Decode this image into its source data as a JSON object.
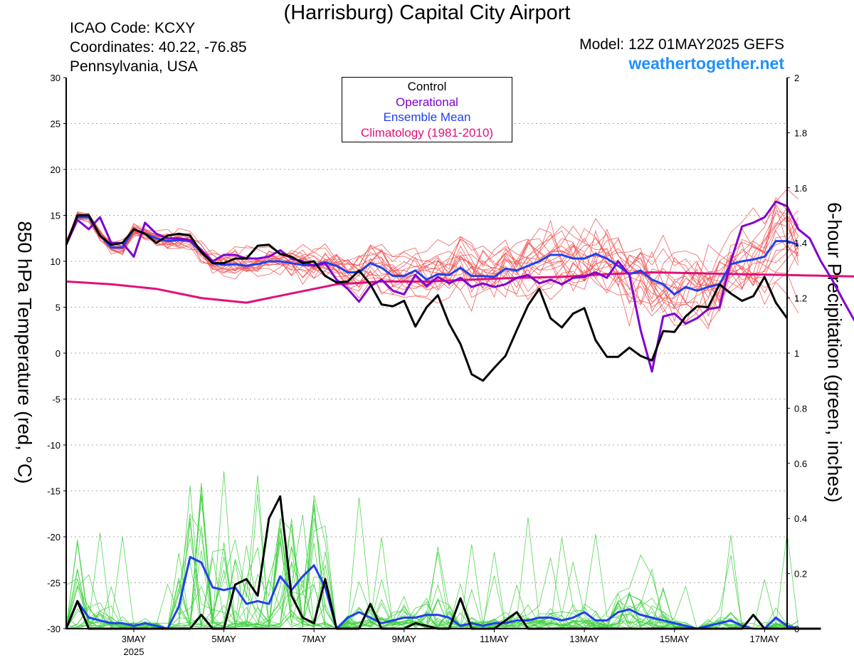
{
  "header": {
    "title": "(Harrisburg) Capital City Airport",
    "icao": "ICAO Code: KCXY",
    "coordinates": "Coordinates: 40.22, -76.85",
    "location": "Pennsylvania, USA",
    "model": "Model: 12Z 01MAY2025 GEFS",
    "site": "weathertogether.net"
  },
  "chart_data": {
    "type": "line",
    "ylabel_left": "850 hPa Temperature (red, °C)",
    "ylabel_right": "6-hour Precipitation (green, inches)",
    "ylim_left": [
      -30,
      30
    ],
    "ylim_right": [
      0,
      2
    ],
    "yticks_left": [
      "30",
      "25",
      "20",
      "15",
      "10",
      "5",
      "0",
      "-5",
      "-10",
      "-15",
      "-20",
      "-25",
      "-30"
    ],
    "yticks_right": [
      "2",
      "1.8",
      "1.6",
      "1.4",
      "1.2",
      "1",
      "0.8",
      "0.6",
      "0.4",
      "0.2",
      "0"
    ],
    "x_start_day": 1.5,
    "x_end_day": 17.5,
    "x_step_days": 0.25,
    "xticks": [
      {
        "day": 3,
        "label": "3MAY",
        "sub": "2025"
      },
      {
        "day": 5,
        "label": "5MAY",
        "sub": ""
      },
      {
        "day": 7,
        "label": "7MAY",
        "sub": ""
      },
      {
        "day": 9,
        "label": "9MAY",
        "sub": ""
      },
      {
        "day": 11,
        "label": "11MAY",
        "sub": ""
      },
      {
        "day": 13,
        "label": "13MAY",
        "sub": ""
      },
      {
        "day": 15,
        "label": "15MAY",
        "sub": ""
      },
      {
        "day": 17,
        "label": "17MAY",
        "sub": ""
      }
    ],
    "legend": [
      "Control",
      "Operational",
      "Ensemble Mean",
      "Climatology (1981-2010)"
    ],
    "colors": {
      "control": "#000000",
      "operational": "#8000d0",
      "mean": "#2040f0",
      "climatology": "#e0107a",
      "members_temp": "#f05050",
      "members_precip": "#40d040",
      "site": "#1e90ff"
    },
    "series": [
      {
        "name": "Control",
        "axis": "temp",
        "values": [
          11.8,
          15,
          15,
          12.8,
          11.8,
          12,
          13.5,
          13,
          12,
          12.8,
          13,
          12.8,
          11,
          9.8,
          9.8,
          10.3,
          10.3,
          11.7,
          11.8,
          10.8,
          10.5,
          9.8,
          10,
          8.4,
          7.7,
          7.8,
          9,
          7.5,
          5.3,
          5.1,
          5.7,
          2.9,
          5,
          6.3,
          3.2,
          1,
          -2.3,
          -3,
          -1.6,
          -0.3,
          2.5,
          5.2,
          7,
          3.8,
          2.8,
          4.3,
          4.9,
          1.4,
          -0.4,
          -0.4,
          0.6,
          -0.3,
          -0.8,
          2.4,
          2.3,
          4,
          5.1,
          5,
          7.5,
          6.5,
          5.7,
          6.2,
          8.3,
          5.5,
          3.8
        ]
      },
      {
        "name": "Operational",
        "axis": "temp",
        "values": [
          11.8,
          14.5,
          13.5,
          14.8,
          12,
          12,
          10.5,
          14.2,
          13,
          12.5,
          12.5,
          12.3,
          11.2,
          10,
          10.7,
          10.7,
          10.3,
          10.3,
          10.5,
          11.2,
          10.3,
          10,
          9.5,
          9.8,
          8,
          7,
          5.6,
          7.3,
          8,
          6.8,
          6.4,
          8.5,
          7.3,
          8.3,
          7.6,
          8.2,
          7.2,
          7.6,
          7.2,
          7.5,
          8.2,
          8.5,
          7.6,
          8,
          7.5,
          8.2,
          8.3,
          8.8,
          8.2,
          10,
          8.5,
          2.5,
          -2,
          4,
          4.3,
          3.2,
          3.8,
          4.8,
          5,
          10,
          13.8,
          14.2,
          14.8,
          16.5,
          16,
          13.5,
          12.5,
          10,
          8,
          5.7,
          3.5
        ]
      },
      {
        "name": "Ensemble Mean",
        "axis": "temp",
        "values": [
          11.9,
          14.8,
          14.8,
          12.8,
          11.5,
          11.5,
          13.5,
          13,
          12.5,
          12.2,
          12.3,
          12.2,
          11,
          9.8,
          9.6,
          9.7,
          9.5,
          9.7,
          10,
          10,
          9.8,
          9.6,
          9.6,
          9.9,
          9.5,
          8.8,
          8.8,
          9.8,
          9.3,
          8.4,
          8.4,
          9,
          8,
          8.6,
          8.5,
          9.3,
          8.4,
          8.4,
          8.3,
          9.2,
          9,
          9.5,
          10,
          10.7,
          10.7,
          10.3,
          10.3,
          10.8,
          10.3,
          9.5,
          8.6,
          9,
          8,
          7.5,
          6.4,
          7.2,
          6.8,
          7.2,
          7.5,
          9.7,
          10,
          10.2,
          10.5,
          12.2,
          12.2,
          11.8
        ]
      },
      {
        "name": "Climatology (1981-2010)",
        "axis": "temp",
        "step_days": 1,
        "values": [
          7.8,
          7.5,
          7.0,
          6.0,
          5.5,
          6.5,
          7.5,
          7.8,
          7.8,
          8.0,
          8.2,
          8.3,
          8.6,
          8.8,
          8.7,
          8.6,
          8.5,
          8.4,
          8.3,
          8.5,
          8.7,
          8.8,
          8.9,
          8.8
        ]
      }
    ],
    "precip_series": [
      {
        "name": "Control",
        "values": [
          0,
          0.1,
          0,
          0,
          0,
          0,
          0,
          0,
          0,
          0,
          0,
          0,
          0.05,
          0,
          0,
          0.16,
          0.18,
          0.12,
          0.4,
          0.48,
          0.12,
          0.04,
          0.02,
          0.18,
          0,
          0,
          0,
          0.09,
          0,
          0,
          0,
          0.02,
          0.01,
          0,
          0,
          0.11,
          0,
          0,
          0,
          0.03,
          0.06,
          0,
          0,
          0,
          0,
          0,
          0,
          0,
          0,
          0,
          0,
          0,
          0,
          0,
          0,
          0,
          0,
          0,
          0,
          0,
          0,
          0.05,
          0,
          0,
          0,
          0,
          0,
          0
        ]
      },
      {
        "name": "Ensemble Mean",
        "axis": "precip",
        "values": [
          0,
          0.1,
          0.04,
          0.03,
          0.02,
          0.02,
          0.01,
          0.02,
          0.01,
          0,
          0.08,
          0.26,
          0.24,
          0.15,
          0.14,
          0.15,
          0.09,
          0.1,
          0.09,
          0.19,
          0.14,
          0.19,
          0.23,
          0.15,
          0,
          0.04,
          0.06,
          0.04,
          0.02,
          0.03,
          0.04,
          0.04,
          0.05,
          0.05,
          0.04,
          0.01,
          0.02,
          0.01,
          0.02,
          0.02,
          0.03,
          0.03,
          0.04,
          0.04,
          0.03,
          0.04,
          0.06,
          0.03,
          0.03,
          0.06,
          0.07,
          0.05,
          0.04,
          0.03,
          0.02,
          0.01,
          0,
          0.01,
          0.02,
          0.03,
          0.01,
          0,
          0,
          0.04,
          0.01,
          0
        ]
      }
    ]
  }
}
